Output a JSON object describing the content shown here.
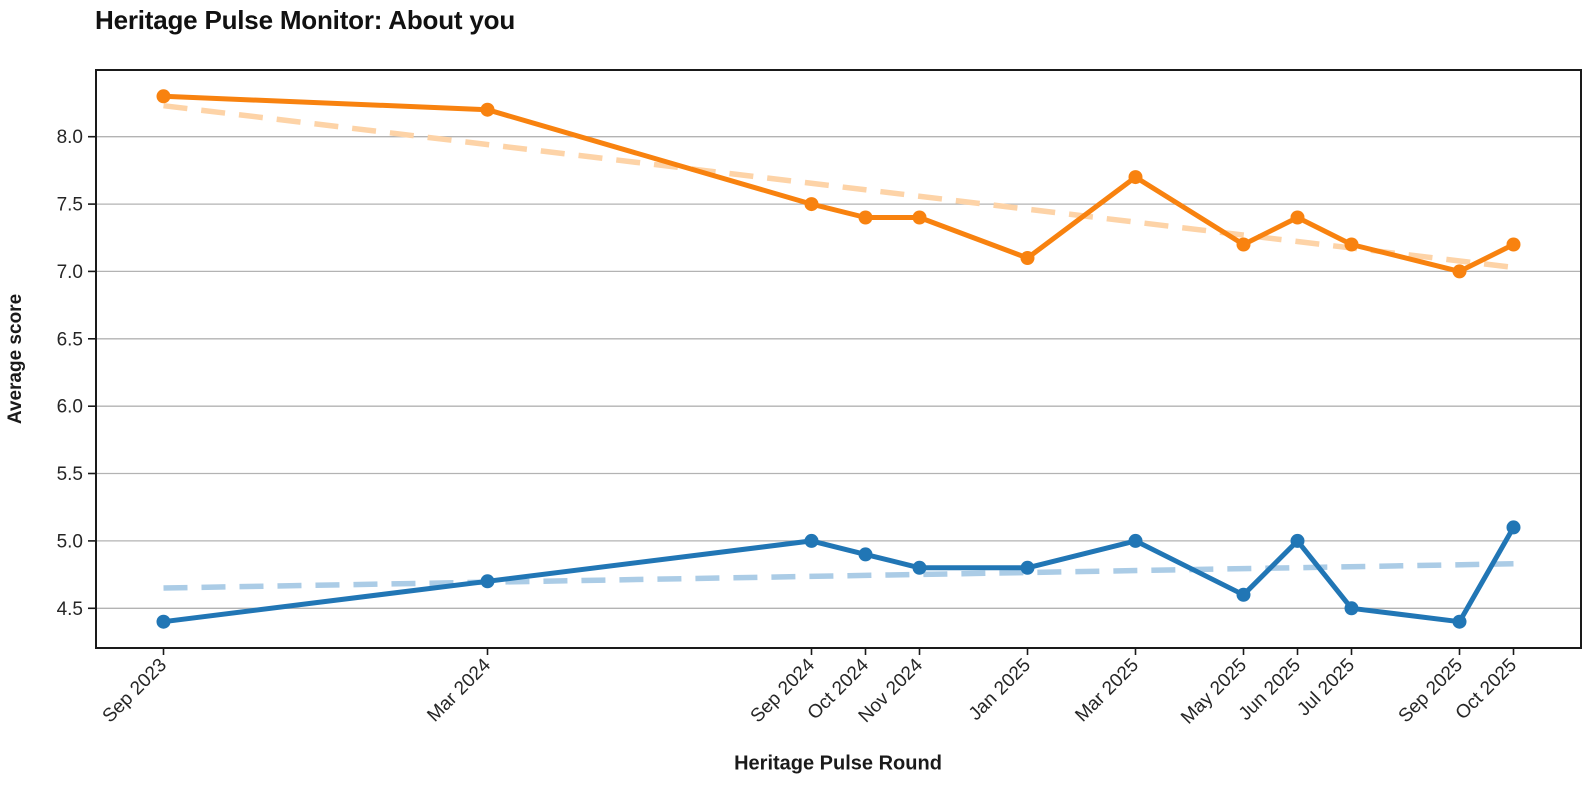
{
  "chart_data": {
    "type": "line",
    "title": "Heritage Pulse Monitor: About you",
    "xlabel": "Heritage Pulse Round",
    "ylabel": "Average score",
    "categories": [
      "Sep 2023",
      "Mar 2024",
      "Sep 2024",
      "Oct 2024",
      "Nov 2024",
      "Jan 2025",
      "Mar 2025",
      "May 2025",
      "Jun 2025",
      "Jul 2025",
      "Sep 2025",
      "Oct 2025"
    ],
    "x_month_offsets": [
      0,
      6,
      12,
      13,
      14,
      16,
      18,
      20,
      21,
      22,
      24,
      25
    ],
    "x_axis_time_scaled": true,
    "ylim": [
      4.205,
      8.495
    ],
    "yticks": [
      4.5,
      5.0,
      5.5,
      6.0,
      6.5,
      7.0,
      7.5,
      8.0
    ],
    "ytick_labels": [
      "4.5",
      "5.0",
      "5.5",
      "6.0",
      "6.5",
      "7.0",
      "7.5",
      "8.0"
    ],
    "grid": "horizontal-only",
    "legend_position": "none",
    "series": [
      {
        "name": "series-orange",
        "color": "#f8820f",
        "marker": "circle",
        "values": [
          8.3,
          8.2,
          7.5,
          7.4,
          7.4,
          7.1,
          7.7,
          7.2,
          7.4,
          7.2,
          7.0,
          7.2
        ],
        "trend": {
          "style": "dashed",
          "color": "#fdd3a7",
          "start": 8.23,
          "end": 7.03
        }
      },
      {
        "name": "series-blue",
        "color": "#2176b5",
        "marker": "circle",
        "values": [
          4.4,
          4.7,
          5.0,
          4.9,
          4.8,
          4.8,
          5.0,
          4.6,
          5.0,
          4.5,
          4.4,
          5.1
        ],
        "trend": {
          "style": "dashed",
          "color": "#abcce6",
          "start": 4.65,
          "end": 4.83
        }
      }
    ],
    "colors": {
      "grid": "#b3b3b3",
      "spine": "#1a1a1a",
      "tick_text": "#262626",
      "background": "#ffffff"
    }
  }
}
